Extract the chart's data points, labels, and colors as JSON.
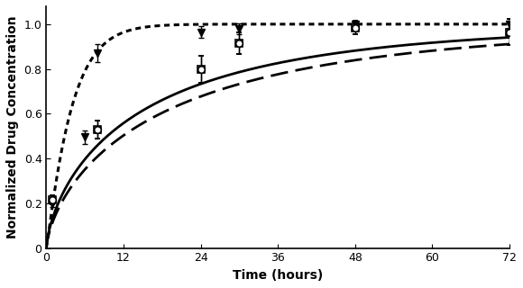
{
  "title": "",
  "xlabel": "Time (hours)",
  "ylabel": "Normalized Drug Concentration",
  "xlim": [
    0,
    72
  ],
  "ylim": [
    0,
    1.08
  ],
  "xticks": [
    0,
    12,
    24,
    36,
    48,
    60,
    72
  ],
  "yticks": [
    0,
    0.2,
    0.4,
    0.6,
    0.8,
    1.0
  ],
  "background_color": "#ffffff",
  "dextran_data_x": [
    1,
    6,
    8,
    24,
    30,
    48,
    72
  ],
  "dextran_data_y": [
    0.2,
    0.495,
    0.87,
    0.965,
    0.98,
    1.0,
    1.0
  ],
  "dextran_data_yerr": [
    0.015,
    0.03,
    0.04,
    0.025,
    0.025,
    0.015,
    0.015
  ],
  "dextran_curve_k": 0.48,
  "paclitaxel_data_x": [
    1,
    8,
    24,
    30,
    48,
    72
  ],
  "paclitaxel_data_y": [
    0.215,
    0.53,
    0.8,
    0.915,
    0.985,
    0.965
  ],
  "paclitaxel_data_yerr": [
    0.02,
    0.04,
    0.06,
    0.05,
    0.03,
    0.06
  ],
  "paclitaxel_curve_k": 0.1,
  "rapamycin_data_x": [
    1,
    8,
    24,
    30,
    48,
    72
  ],
  "rapamycin_data_y": [
    0.215,
    0.53,
    0.8,
    0.915,
    0.985,
    0.965
  ],
  "rapamycin_data_yerr": [
    0.02,
    0.04,
    0.06,
    0.05,
    0.03,
    0.06
  ],
  "rapamycin_curve_k": 0.085,
  "line_color": "#000000",
  "marker_color": "#000000",
  "fontsize_label": 10,
  "fontsize_tick": 9
}
